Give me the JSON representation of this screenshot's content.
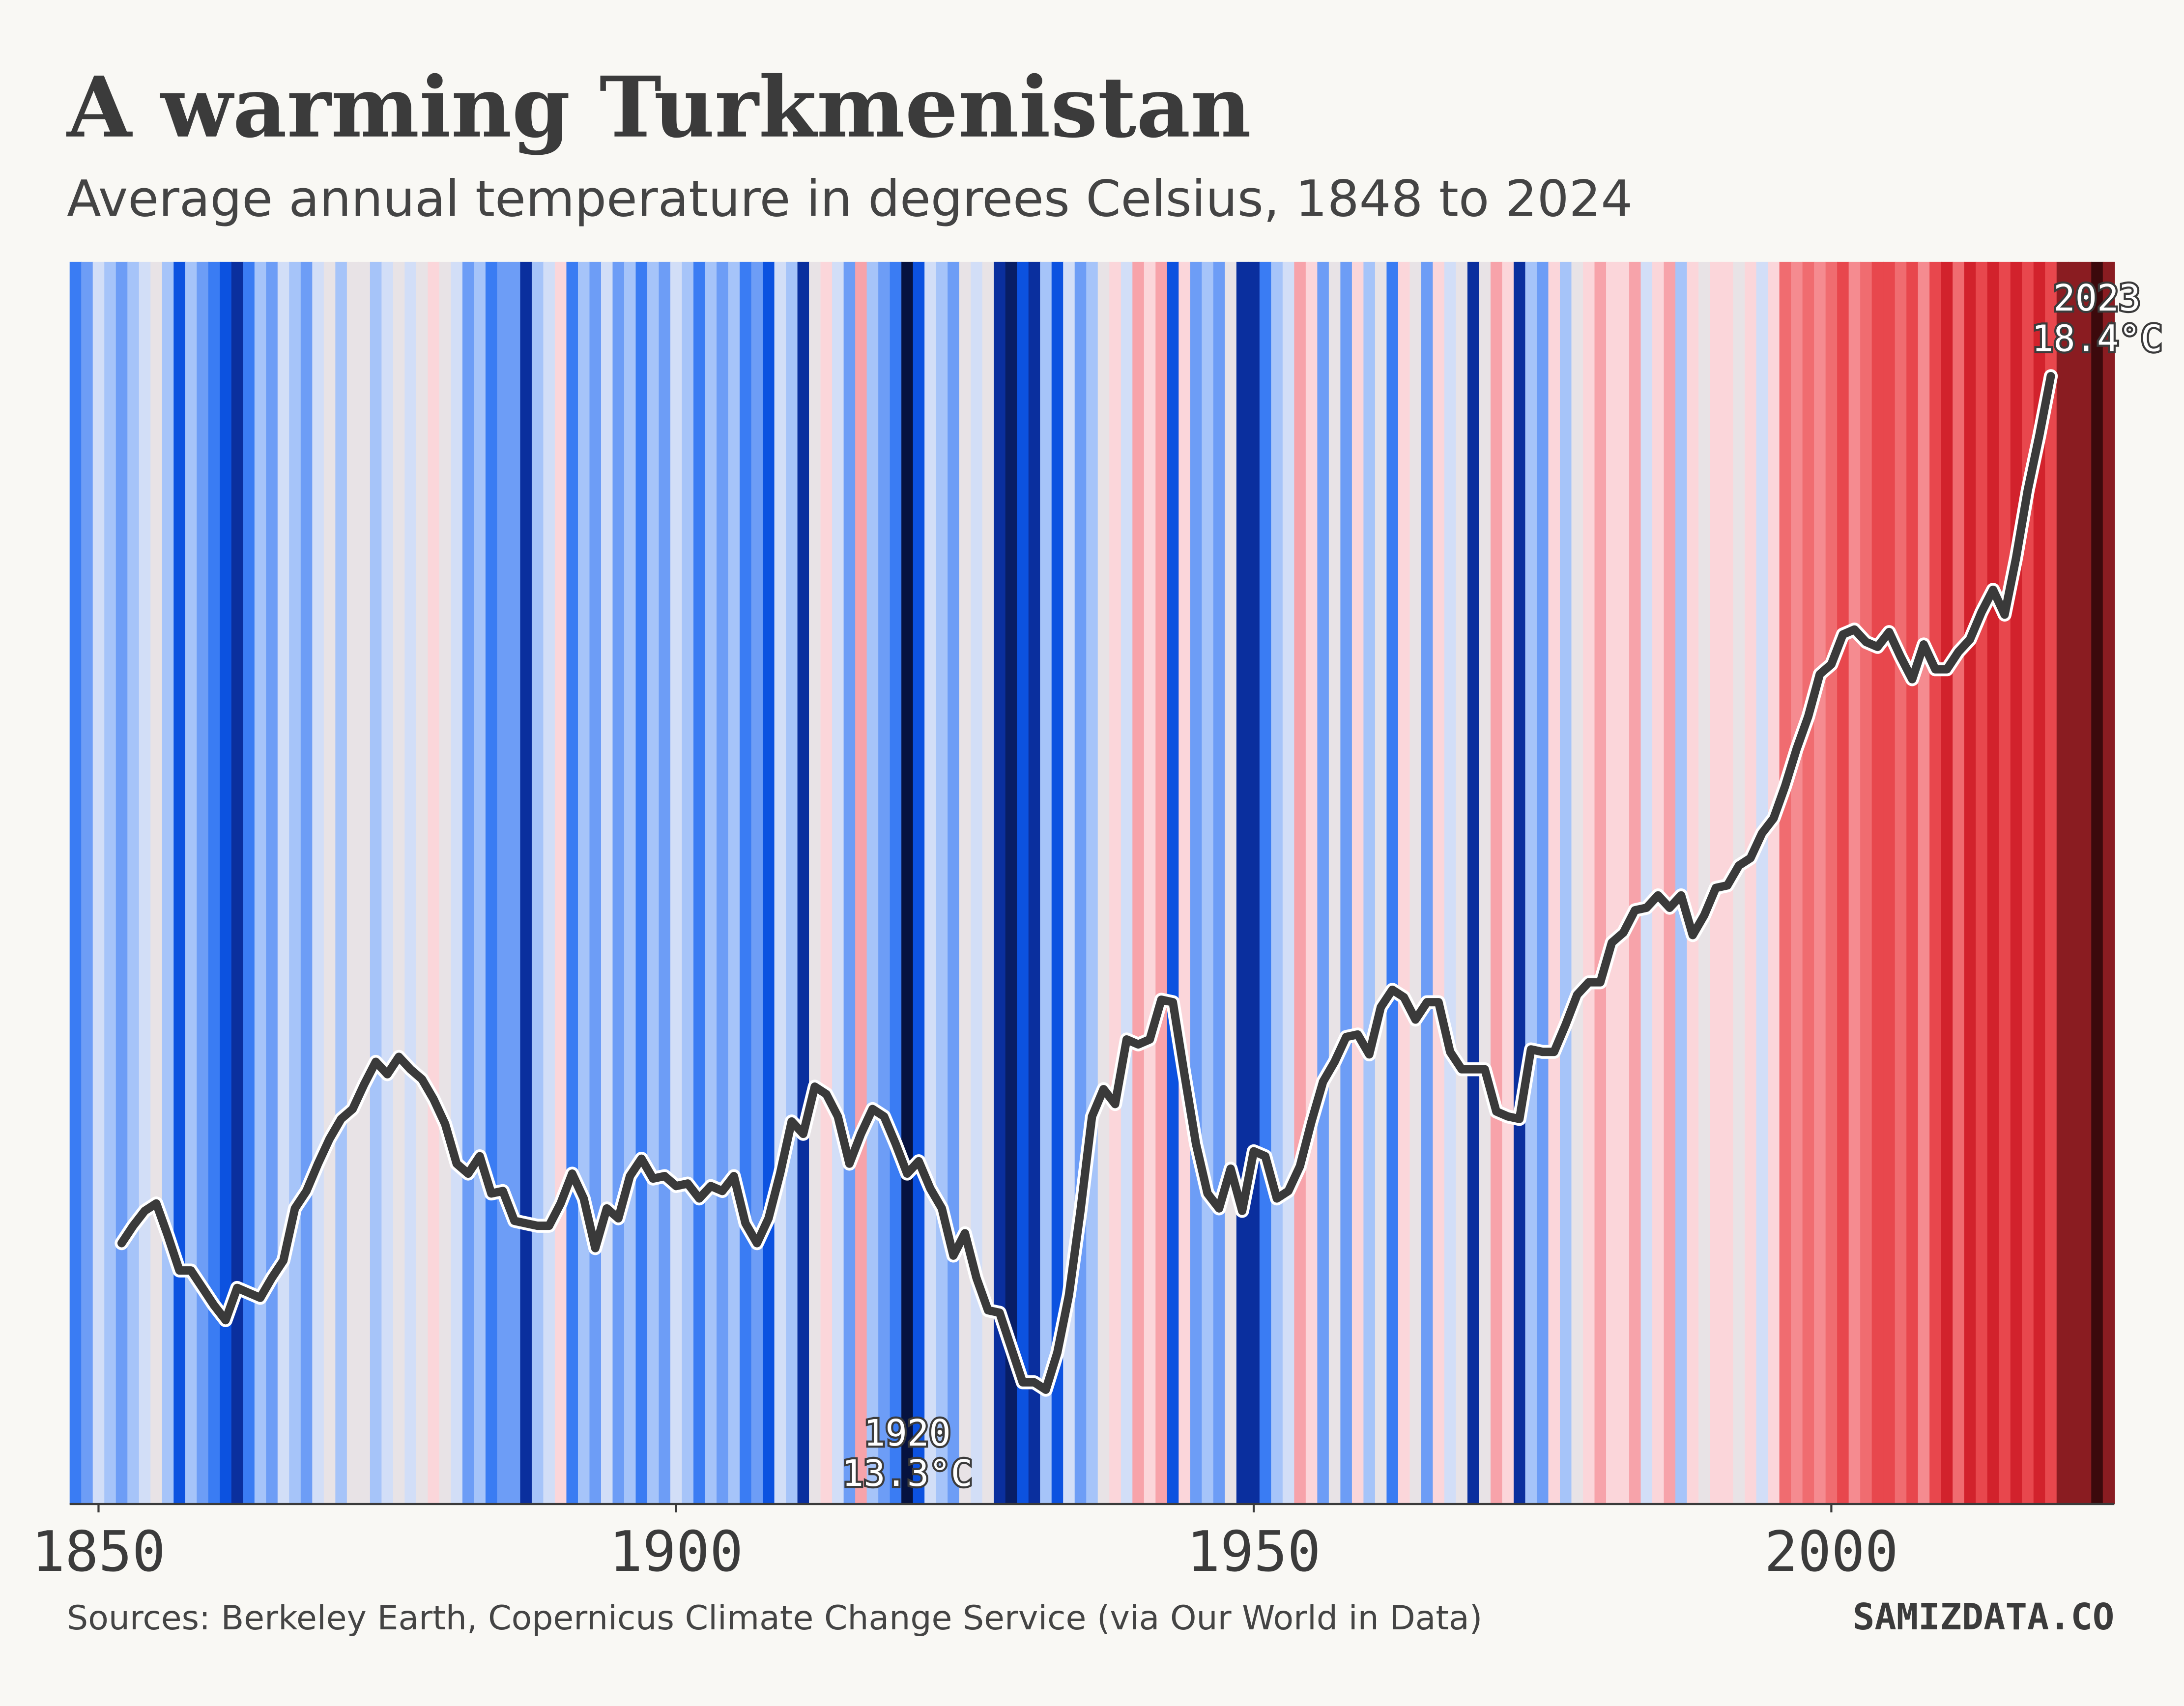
{
  "chart_data": {
    "type": "stripes",
    "title": "A warming Turkmenistan",
    "subtitle": "Average annual temperature in degrees Celsius, 1848 to 2024",
    "source": "Sources: Berkeley Earth, Copernicus Climate Change Service (via Our World in Data)",
    "brand": "SAMIZDATA.CO",
    "xlim": [
      1847.5,
      2024.5
    ],
    "xticks": [
      1850,
      1900,
      1950,
      2000
    ],
    "ylim": [
      13,
      18
    ],
    "colormap": [
      {
        "value": 13.3,
        "color": "#06123f"
      },
      {
        "value": 13.55,
        "color": "#0a2f9e"
      },
      {
        "value": 13.75,
        "color": "#0c52e0"
      },
      {
        "value": 13.95,
        "color": "#3a7cf3"
      },
      {
        "value": 14.15,
        "color": "#6d9df6"
      },
      {
        "value": 14.35,
        "color": "#a6c4f9"
      },
      {
        "value": 14.55,
        "color": "#d2def7"
      },
      {
        "value": 14.8,
        "color": "#e8e3e6"
      },
      {
        "value": 15.05,
        "color": "#fbd6da"
      },
      {
        "value": 15.35,
        "color": "#f7a3aa"
      },
      {
        "value": 15.75,
        "color": "#f58b90"
      },
      {
        "value": 16.2,
        "color": "#f06c70"
      },
      {
        "value": 16.7,
        "color": "#e8474d"
      },
      {
        "value": 17.2,
        "color": "#d2222c"
      },
      {
        "value": 17.75,
        "color": "#8a1c21"
      },
      {
        "value": 18.4,
        "color": "#3c090c"
      }
    ],
    "series": [
      {
        "type": "stripes",
        "x": [
          1848,
          1849,
          1850,
          1851,
          1852,
          1853,
          1854,
          1855,
          1856,
          1857,
          1858,
          1859,
          1860,
          1861,
          1862,
          1863,
          1864,
          1865,
          1866,
          1867,
          1868,
          1869,
          1870,
          1871,
          1872,
          1873,
          1874,
          1875,
          1876,
          1877,
          1878,
          1879,
          1880,
          1881,
          1882,
          1883,
          1884,
          1885,
          1886,
          1887,
          1888,
          1889,
          1890,
          1891,
          1892,
          1893,
          1894,
          1895,
          1896,
          1897,
          1898,
          1899,
          1900,
          1901,
          1902,
          1903,
          1904,
          1905,
          1906,
          1907,
          1908,
          1909,
          1910,
          1911,
          1912,
          1913,
          1914,
          1915,
          1916,
          1917,
          1918,
          1919,
          1920,
          1921,
          1922,
          1923,
          1924,
          1925,
          1926,
          1927,
          1928,
          1929,
          1930,
          1931,
          1932,
          1933,
          1934,
          1935,
          1936,
          1937,
          1938,
          1939,
          1940,
          1941,
          1942,
          1943,
          1944,
          1945,
          1946,
          1947,
          1948,
          1949,
          1950,
          1951,
          1952,
          1953,
          1954,
          1955,
          1956,
          1957,
          1958,
          1959,
          1960,
          1961,
          1962,
          1963,
          1964,
          1965,
          1966,
          1967,
          1968,
          1969,
          1970,
          1971,
          1972,
          1973,
          1974,
          1975,
          1976,
          1977,
          1978,
          1979,
          1980,
          1981,
          1982,
          1983,
          1984,
          1985,
          1986,
          1987,
          1988,
          1989,
          1990,
          1991,
          1992,
          1993,
          1994,
          1995,
          1996,
          1997,
          1998,
          1999,
          2000,
          2001,
          2002,
          2003,
          2004,
          2005,
          2006,
          2007,
          2008,
          2009,
          2010,
          2011,
          2012,
          2013,
          2014,
          2015,
          2016,
          2017,
          2018,
          2019,
          2020,
          2021,
          2022,
          2023,
          2024
        ],
        "values": [
          13.95,
          14.15,
          14.55,
          14.35,
          14.15,
          14.35,
          14.55,
          14.8,
          14.35,
          13.75,
          14.35,
          14.15,
          13.95,
          13.75,
          13.55,
          13.95,
          14.35,
          14.15,
          14.55,
          14.35,
          14.15,
          14.55,
          14.8,
          14.35,
          14.8,
          14.8,
          14.35,
          14.55,
          14.8,
          14.55,
          14.8,
          15.05,
          14.8,
          14.55,
          14.15,
          14.35,
          13.95,
          14.15,
          14.15,
          13.55,
          14.35,
          14.55,
          15.05,
          13.95,
          14.35,
          14.15,
          14.55,
          14.15,
          14.35,
          13.95,
          14.35,
          14.15,
          14.55,
          14.35,
          13.95,
          14.35,
          14.15,
          14.35,
          13.95,
          14.15,
          13.75,
          14.55,
          14.35,
          13.55,
          14.8,
          15.05,
          14.55,
          14.15,
          15.35,
          14.35,
          14.15,
          13.95,
          13.3,
          13.75,
          14.55,
          14.35,
          14.15,
          14.8,
          14.55,
          14.8,
          13.55,
          13.4,
          13.75,
          13.55,
          14.35,
          13.75,
          14.55,
          14.15,
          14.35,
          14.8,
          15.05,
          14.55,
          15.35,
          15.05,
          15.35,
          13.75,
          15.05,
          14.15,
          14.35,
          14.15,
          14.8,
          13.55,
          13.55,
          13.95,
          14.35,
          14.55,
          15.35,
          15.05,
          14.15,
          14.8,
          14.15,
          15.05,
          14.35,
          14.8,
          13.95,
          15.05,
          14.8,
          14.15,
          15.05,
          14.55,
          14.8,
          13.55,
          14.8,
          15.35,
          15.05,
          13.55,
          14.35,
          14.15,
          15.05,
          14.35,
          14.8,
          15.05,
          15.35,
          15.05,
          15.05,
          15.35,
          14.55,
          15.05,
          15.35,
          14.35,
          15.05,
          14.8,
          15.05,
          15.05,
          14.8,
          15.05,
          14.55,
          15.05,
          16.2,
          15.75,
          16.2,
          15.75,
          16.2,
          16.7,
          15.75,
          16.2,
          16.7,
          16.7,
          16.2,
          16.7,
          15.75,
          16.7,
          17.2,
          16.2,
          17.2,
          16.7,
          17.2,
          16.7,
          17.2,
          16.7,
          17.2,
          16.7,
          17.75,
          17.75,
          17.75,
          18.4,
          17.75
        ]
      },
      {
        "type": "line",
        "color": "#3a3a3a",
        "x": [
          1852,
          1853,
          1854,
          1855,
          1856,
          1857,
          1858,
          1859,
          1860,
          1861,
          1862,
          1863,
          1864,
          1865,
          1866,
          1867,
          1868,
          1869,
          1870,
          1871,
          1872,
          1873,
          1874,
          1875,
          1876,
          1877,
          1878,
          1879,
          1880,
          1881,
          1882,
          1883,
          1884,
          1885,
          1886,
          1887,
          1888,
          1889,
          1890,
          1891,
          1892,
          1893,
          1894,
          1895,
          1896,
          1897,
          1898,
          1899,
          1900,
          1901,
          1902,
          1903,
          1904,
          1905,
          1906,
          1907,
          1908,
          1909,
          1910,
          1911,
          1912,
          1913,
          1914,
          1915,
          1916,
          1917,
          1918,
          1919,
          1920,
          1921,
          1922,
          1923,
          1924,
          1925,
          1926,
          1927,
          1928,
          1929,
          1930,
          1931,
          1932,
          1933,
          1934,
          1935,
          1936,
          1937,
          1938,
          1939,
          1940,
          1941,
          1942,
          1943,
          1944,
          1945,
          1946,
          1947,
          1948,
          1949,
          1950,
          1951,
          1952,
          1953,
          1954,
          1955,
          1956,
          1957,
          1958,
          1959,
          1960,
          1961,
          1962,
          1963,
          1964,
          1965,
          1966,
          1967,
          1968,
          1969,
          1970,
          1971,
          1972,
          1973,
          1974,
          1975,
          1976,
          1977,
          1978,
          1979,
          1980,
          1981,
          1982,
          1983,
          1984,
          1985,
          1986,
          1987,
          1988,
          1989,
          1990,
          1991,
          1992,
          1993,
          1994,
          1995,
          1996,
          1997,
          1998,
          1999,
          2000,
          2001,
          2002,
          2003,
          2004,
          2005,
          2006,
          2007,
          2008,
          2009,
          2010,
          2011,
          2012,
          2013,
          2014,
          2015,
          2016,
          2017,
          2018,
          2019
        ],
        "values": [
          14.05,
          14.12,
          14.18,
          14.21,
          14.08,
          13.94,
          13.94,
          13.87,
          13.8,
          13.74,
          13.87,
          13.85,
          13.83,
          13.91,
          13.98,
          14.19,
          14.26,
          14.37,
          14.47,
          14.55,
          14.59,
          14.69,
          14.78,
          14.73,
          14.8,
          14.75,
          14.71,
          14.63,
          14.53,
          14.37,
          14.33,
          14.4,
          14.25,
          14.26,
          14.14,
          14.13,
          14.12,
          14.12,
          14.21,
          14.33,
          14.23,
          14.03,
          14.19,
          14.15,
          14.32,
          14.39,
          14.31,
          14.32,
          14.28,
          14.29,
          14.23,
          14.28,
          14.26,
          14.32,
          14.13,
          14.05,
          14.15,
          14.33,
          14.54,
          14.49,
          14.68,
          14.65,
          14.56,
          14.37,
          14.49,
          14.59,
          14.56,
          14.45,
          14.33,
          14.38,
          14.27,
          14.19,
          14.0,
          14.09,
          13.91,
          13.78,
          13.77,
          13.63,
          13.49,
          13.49,
          13.46,
          13.61,
          13.84,
          14.18,
          14.56,
          14.67,
          14.61,
          14.87,
          14.85,
          14.87,
          15.03,
          15.02,
          14.73,
          14.45,
          14.25,
          14.19,
          14.35,
          14.18,
          14.42,
          14.4,
          14.23,
          14.26,
          14.36,
          14.54,
          14.7,
          14.78,
          14.88,
          14.89,
          14.81,
          15.0,
          15.07,
          15.04,
          14.95,
          15.02,
          15.02,
          14.82,
          14.75,
          14.75,
          14.75,
          14.58,
          14.56,
          14.55,
          14.83,
          14.82,
          14.82,
          14.93,
          15.05,
          15.1,
          15.1,
          15.26,
          15.3,
          15.39,
          15.4,
          15.45,
          15.4,
          15.45,
          15.29,
          15.37,
          15.48,
          15.49,
          15.57,
          15.6,
          15.7,
          15.76,
          15.89,
          16.04,
          16.17,
          16.34,
          16.38,
          16.5,
          16.52,
          16.47,
          16.45,
          16.51,
          16.41,
          16.32,
          16.46,
          16.36,
          16.36,
          16.43,
          16.48,
          16.59,
          16.68,
          16.58,
          16.81,
          17.08,
          17.3,
          17.54
        ]
      }
    ],
    "annotations": [
      {
        "x": 1920,
        "label": "13.3°C",
        "position": "bottom"
      },
      {
        "x": 2023,
        "label": "18.4°C",
        "position": "top"
      }
    ]
  }
}
